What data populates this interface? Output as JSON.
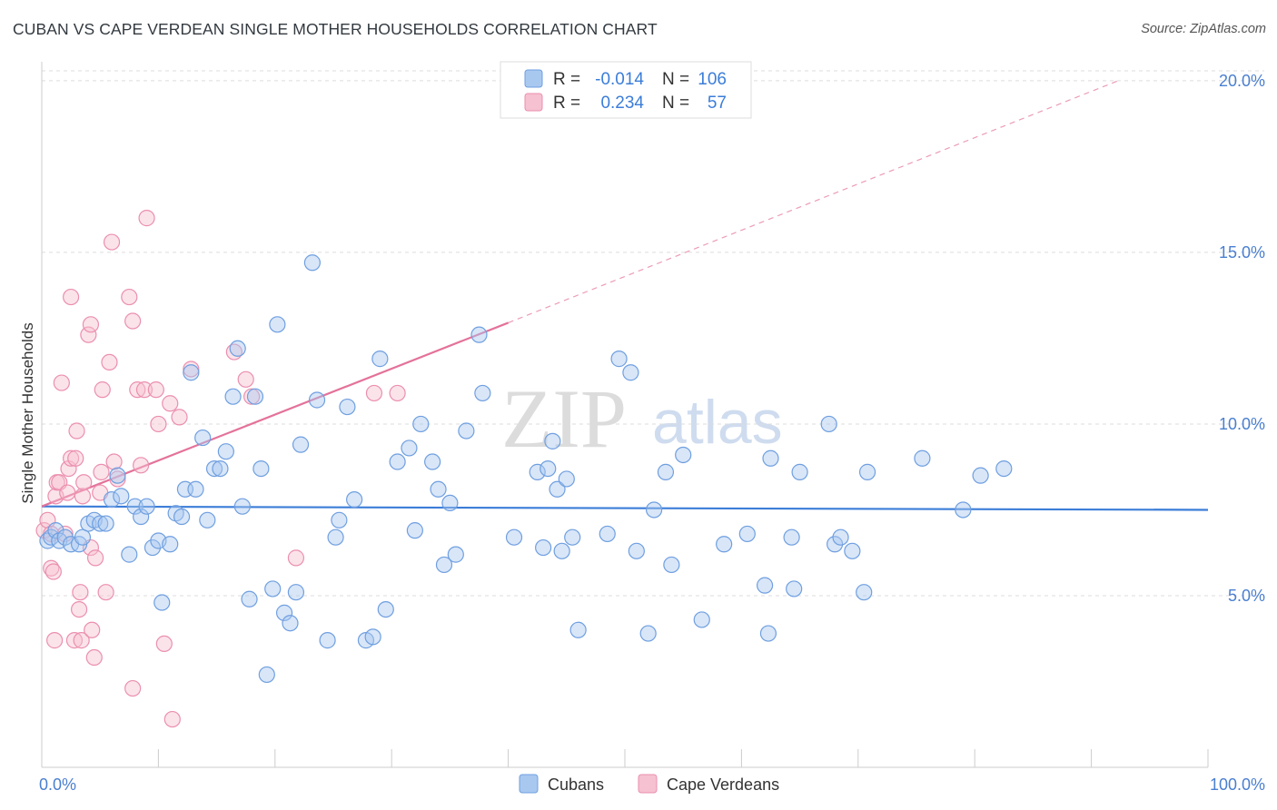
{
  "title": "CUBAN VS CAPE VERDEAN SINGLE MOTHER HOUSEHOLDS CORRELATION CHART",
  "source": "Source: ZipAtlas.com",
  "watermark": {
    "zip": "ZIP",
    "atlas": "atlas"
  },
  "colors": {
    "cuban_fill": "#a9c8f0",
    "cuban_stroke": "#6f9fe0",
    "cuban_line": "#3b7dd8",
    "cape_fill": "#f6c1d1",
    "cape_stroke": "#eb8fae",
    "cape_line": "#e4729a",
    "axis_text": "#4a7fd0",
    "grid": "#dddddd"
  },
  "legend": {
    "rows": [
      {
        "r_label": "R =",
        "r_value": "-0.014",
        "n_label": "N =",
        "n_value": "106"
      },
      {
        "r_label": "R =",
        "r_value": "0.234",
        "n_label": "N =",
        "n_value": "57"
      }
    ]
  },
  "bottom_legend": [
    "Cubans",
    "Cape Verdeans"
  ],
  "chart_data": {
    "type": "scatter",
    "title": "CUBAN VS CAPE VERDEAN SINGLE MOTHER HOUSEHOLDS CORRELATION CHART",
    "xlabel": "",
    "ylabel": "Single Mother Households",
    "xlim": [
      0,
      100
    ],
    "ylim": [
      0,
      20.5
    ],
    "x_tick_labels": [
      "0.0%",
      "100.0%"
    ],
    "y_ticks": [
      5,
      10,
      15,
      20
    ],
    "y_tick_labels": [
      "5.0%",
      "10.0%",
      "15.0%",
      "20.0%"
    ],
    "grid": true,
    "series": [
      {
        "name": "Cubans",
        "trend": {
          "x": [
            0,
            100
          ],
          "y": [
            7.6,
            7.5
          ],
          "r": -0.014,
          "n": 106
        },
        "points": [
          [
            0.5,
            6.6
          ],
          [
            0.8,
            6.7
          ],
          [
            1.2,
            6.9
          ],
          [
            1.5,
            6.6
          ],
          [
            2,
            6.7
          ],
          [
            2.5,
            6.5
          ],
          [
            3.2,
            6.5
          ],
          [
            3.5,
            6.7
          ],
          [
            4,
            7.1
          ],
          [
            4.5,
            7.2
          ],
          [
            5,
            7.1
          ],
          [
            5.5,
            7.1
          ],
          [
            6,
            7.8
          ],
          [
            6.5,
            8.5
          ],
          [
            6.8,
            7.9
          ],
          [
            7.5,
            6.2
          ],
          [
            8,
            7.6
          ],
          [
            8.5,
            7.3
          ],
          [
            9,
            7.6
          ],
          [
            9.5,
            6.4
          ],
          [
            10,
            6.6
          ],
          [
            10.3,
            4.8
          ],
          [
            11,
            6.5
          ],
          [
            11.5,
            7.4
          ],
          [
            12,
            7.3
          ],
          [
            12.3,
            8.1
          ],
          [
            12.8,
            11.5
          ],
          [
            13.2,
            8.1
          ],
          [
            13.8,
            9.6
          ],
          [
            14.2,
            7.2
          ],
          [
            14.8,
            8.7
          ],
          [
            15.3,
            8.7
          ],
          [
            15.8,
            9.2
          ],
          [
            16.4,
            10.8
          ],
          [
            16.8,
            12.2
          ],
          [
            17.2,
            7.6
          ],
          [
            17.8,
            4.9
          ],
          [
            18.3,
            10.8
          ],
          [
            18.8,
            8.7
          ],
          [
            19.3,
            2.7
          ],
          [
            19.8,
            5.2
          ],
          [
            20.2,
            12.9
          ],
          [
            20.8,
            4.5
          ],
          [
            21.3,
            4.2
          ],
          [
            21.8,
            5.1
          ],
          [
            22.2,
            9.4
          ],
          [
            23.2,
            14.7
          ],
          [
            23.6,
            10.7
          ],
          [
            24.5,
            3.7
          ],
          [
            25.2,
            6.7
          ],
          [
            25.5,
            7.2
          ],
          [
            26.2,
            10.5
          ],
          [
            26.8,
            7.8
          ],
          [
            27.8,
            3.7
          ],
          [
            28.4,
            3.8
          ],
          [
            29,
            11.9
          ],
          [
            29.5,
            4.6
          ],
          [
            30.5,
            8.9
          ],
          [
            31.5,
            9.3
          ],
          [
            32,
            6.9
          ],
          [
            32.5,
            10
          ],
          [
            33.5,
            8.9
          ],
          [
            34,
            8.1
          ],
          [
            34.5,
            5.9
          ],
          [
            35,
            7.7
          ],
          [
            35.5,
            6.2
          ],
          [
            36.4,
            9.8
          ],
          [
            37.5,
            12.6
          ],
          [
            37.8,
            10.9
          ],
          [
            40.5,
            6.7
          ],
          [
            42.5,
            8.6
          ],
          [
            43,
            6.4
          ],
          [
            43.4,
            8.7
          ],
          [
            43.8,
            9.5
          ],
          [
            44.2,
            8.1
          ],
          [
            44.6,
            6.3
          ],
          [
            45,
            8.4
          ],
          [
            45.5,
            6.7
          ],
          [
            46,
            4
          ],
          [
            48.5,
            6.8
          ],
          [
            49.5,
            11.9
          ],
          [
            50.5,
            11.5
          ],
          [
            51,
            6.3
          ],
          [
            52,
            3.9
          ],
          [
            52.5,
            7.5
          ],
          [
            53.5,
            8.6
          ],
          [
            54,
            5.9
          ],
          [
            55,
            9.1
          ],
          [
            56.6,
            4.3
          ],
          [
            58.5,
            6.5
          ],
          [
            60.5,
            6.8
          ],
          [
            62,
            5.3
          ],
          [
            62.3,
            3.9
          ],
          [
            62.5,
            9
          ],
          [
            64.3,
            6.7
          ],
          [
            64.5,
            5.2
          ],
          [
            65,
            8.6
          ],
          [
            67.5,
            10
          ],
          [
            68,
            6.5
          ],
          [
            68.5,
            6.7
          ],
          [
            69.5,
            6.3
          ],
          [
            70.5,
            5.1
          ],
          [
            70.8,
            8.6
          ],
          [
            75.5,
            9
          ],
          [
            79,
            7.5
          ],
          [
            80.5,
            8.5
          ],
          [
            82.5,
            8.7
          ]
        ]
      },
      {
        "name": "Cape Verdeans",
        "trend": {
          "x": [
            0,
            40
          ],
          "y": [
            7.6,
            12.95
          ],
          "extension": {
            "x": [
              40,
              92.3
            ],
            "y": [
              12.95,
              20
            ]
          },
          "r": 0.234,
          "n": 57
        },
        "points": [
          [
            0.2,
            6.9
          ],
          [
            0.5,
            7.2
          ],
          [
            0.8,
            6.8
          ],
          [
            0.8,
            5.8
          ],
          [
            1,
            5.7
          ],
          [
            1.1,
            3.7
          ],
          [
            1.2,
            7.9
          ],
          [
            1.3,
            8.3
          ],
          [
            1.5,
            8.3
          ],
          [
            1.7,
            11.2
          ],
          [
            2,
            6.8
          ],
          [
            2.2,
            8
          ],
          [
            2.3,
            8.7
          ],
          [
            2.5,
            13.7
          ],
          [
            2.5,
            9
          ],
          [
            2.8,
            3.7
          ],
          [
            2.9,
            9
          ],
          [
            3,
            9.8
          ],
          [
            3.2,
            4.6
          ],
          [
            3.3,
            5.1
          ],
          [
            3.4,
            3.7
          ],
          [
            3.5,
            7.9
          ],
          [
            3.6,
            8.3
          ],
          [
            4,
            12.6
          ],
          [
            4.2,
            12.9
          ],
          [
            4.2,
            6.4
          ],
          [
            4.3,
            4
          ],
          [
            4.5,
            3.2
          ],
          [
            4.6,
            6.1
          ],
          [
            5,
            8
          ],
          [
            5.1,
            8.6
          ],
          [
            5.2,
            11
          ],
          [
            5.5,
            5.1
          ],
          [
            5.8,
            11.8
          ],
          [
            6,
            15.3
          ],
          [
            6.2,
            8.9
          ],
          [
            6.5,
            8.4
          ],
          [
            7.5,
            13.7
          ],
          [
            7.8,
            2.3
          ],
          [
            7.8,
            13
          ],
          [
            8.2,
            11
          ],
          [
            8.5,
            8.8
          ],
          [
            8.8,
            11
          ],
          [
            9,
            16
          ],
          [
            9.8,
            11
          ],
          [
            10,
            10
          ],
          [
            10.5,
            3.6
          ],
          [
            11,
            10.6
          ],
          [
            11.2,
            1.4
          ],
          [
            11.8,
            10.2
          ],
          [
            12.8,
            11.6
          ],
          [
            16.5,
            12.1
          ],
          [
            17.5,
            11.3
          ],
          [
            18,
            10.8
          ],
          [
            21.8,
            6.1
          ],
          [
            28.5,
            10.9
          ],
          [
            30.5,
            10.9
          ]
        ]
      }
    ]
  }
}
